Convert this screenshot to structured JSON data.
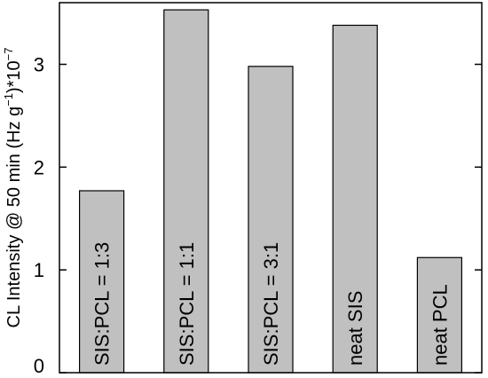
{
  "chart_data": {
    "type": "bar",
    "categories": [
      "SIS:PCL = 1:3",
      "SIS:PCL = 1:1",
      "SIS:PCL = 3:1",
      "neat SIS",
      "neat PCL"
    ],
    "values": [
      1.77,
      3.53,
      2.98,
      3.38,
      1.12
    ],
    "ylim": [
      0,
      3.6
    ],
    "yticks": [
      "0",
      "1",
      "2",
      "3"
    ],
    "ylabel": {
      "main": "CL Intensity @ 50 min (Hz g",
      "sup1": "−1",
      "mid": ")*10",
      "sup2": "−7"
    },
    "grid": false,
    "colors": {
      "bar_fill": "#c0c0c0",
      "bar_stroke": "#000000",
      "axis": "#000000"
    }
  }
}
